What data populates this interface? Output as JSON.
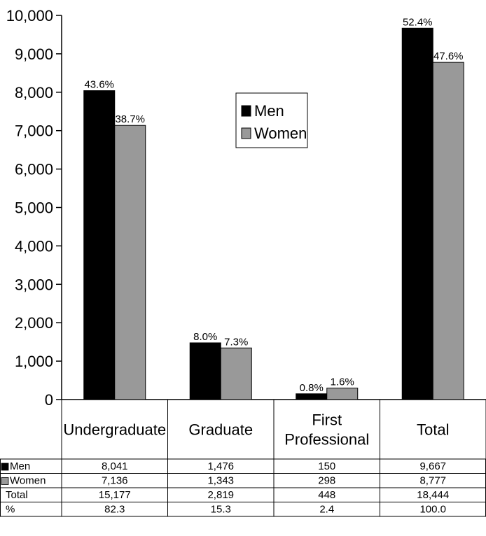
{
  "chart_data": {
    "type": "bar",
    "categories": [
      "Undergraduate",
      "Graduate",
      "First Professional",
      "Total"
    ],
    "category_lines": [
      [
        "Undergraduate"
      ],
      [
        "Graduate"
      ],
      [
        "First",
        "Professional"
      ],
      [
        "Total"
      ]
    ],
    "ylim": [
      0,
      10000
    ],
    "yticks": [
      0,
      1000,
      2000,
      3000,
      4000,
      5000,
      6000,
      7000,
      8000,
      9000,
      10000
    ],
    "ytick_labels": [
      "0",
      "1,000",
      "2,000",
      "3,000",
      "4,000",
      "5,000",
      "6,000",
      "7,000",
      "8,000",
      "9,000",
      "10,000"
    ],
    "series": [
      {
        "name": "Men",
        "color": "#000000",
        "values": [
          8041,
          1476,
          150,
          9667
        ],
        "labels": [
          "43.6%",
          "8.0%",
          "0.8%",
          "52.4%"
        ]
      },
      {
        "name": "Women",
        "color": "#999999",
        "values": [
          7136,
          1343,
          298,
          8777
        ],
        "labels": [
          "38.7%",
          "7.3%",
          "1.6%",
          "47.6%"
        ]
      }
    ],
    "legend_position": "center",
    "table": {
      "rows": [
        {
          "label": "Men",
          "swatch": "#000000",
          "cells": [
            "8,041",
            "1,476",
            "150",
            "9,667"
          ]
        },
        {
          "label": "Women",
          "swatch": "#999999",
          "cells": [
            "7,136",
            "1,343",
            "298",
            "8,777"
          ]
        },
        {
          "label": "Total",
          "swatch": null,
          "cells": [
            "15,177",
            "2,819",
            "448",
            "18,444"
          ]
        },
        {
          "label": "%",
          "swatch": null,
          "cells": [
            "82.3",
            "15.3",
            "2.4",
            "100.0"
          ]
        }
      ]
    }
  }
}
